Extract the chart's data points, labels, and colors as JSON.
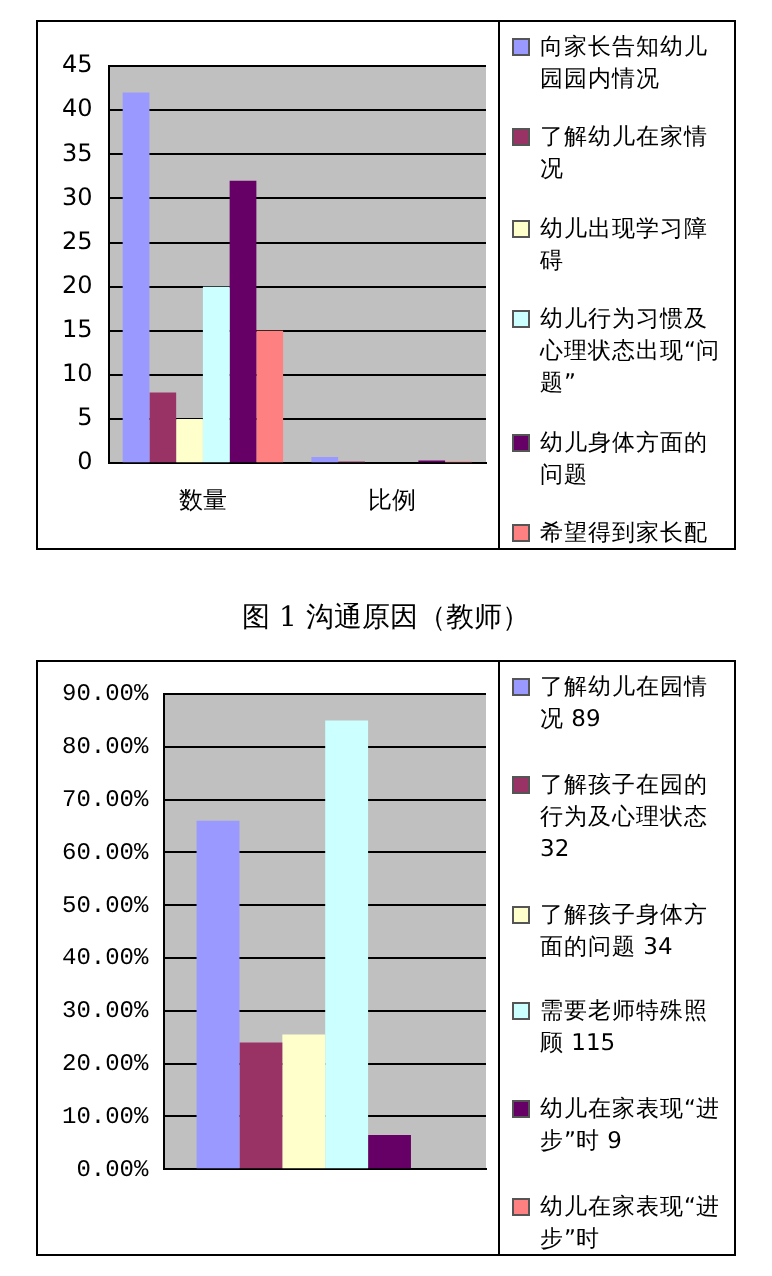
{
  "chart_data": [
    {
      "type": "bar",
      "categories": [
        "数量",
        "比例"
      ],
      "ylim": [
        0,
        45
      ],
      "yticks": [
        0,
        5,
        10,
        15,
        20,
        25,
        30,
        35,
        40,
        45
      ],
      "grid": "y",
      "legend": "right",
      "annotations": [
        "图 1 沟通原因（教师）"
      ],
      "series": [
        {
          "name": "向家长告知幼儿园园内情况",
          "color": "#9999ff",
          "values": [
            42,
            0.7
          ]
        },
        {
          "name": "了解幼儿在家情况",
          "color": "#993366",
          "values": [
            8,
            0.2
          ]
        },
        {
          "name": "幼儿出现学习障碍",
          "color": "#ffffcc",
          "values": [
            5,
            null
          ]
        },
        {
          "name": "幼儿行为习惯及心理状态出现“问题”",
          "color": "#ccffff",
          "values": [
            20,
            null
          ]
        },
        {
          "name": "幼儿身体方面的问题",
          "color": "#660066",
          "values": [
            32,
            0.3
          ]
        },
        {
          "name": "希望得到家长配",
          "color": "#ff8080",
          "values": [
            15,
            0.2
          ]
        }
      ]
    },
    {
      "type": "bar",
      "categories": [
        null
      ],
      "ylim": [
        0,
        90
      ],
      "yticks": [
        {
          "value": 0,
          "label": "0.00%"
        },
        {
          "value": 10,
          "label": "10.00%"
        },
        {
          "value": 20,
          "label": "20.00%"
        },
        {
          "value": 30,
          "label": "30.00%"
        },
        {
          "value": 40,
          "label": "40.00%"
        },
        {
          "value": 50,
          "label": "50.00%"
        },
        {
          "value": 60,
          "label": "60.00%"
        },
        {
          "value": 70,
          "label": "70.00%"
        },
        {
          "value": 80,
          "label": "80.00%"
        },
        {
          "value": 90,
          "label": "90.00%"
        }
      ],
      "grid": "y",
      "legend": "right",
      "series": [
        {
          "name": "了解幼儿在园情况 89",
          "color": "#9999ff",
          "values": [
            66
          ]
        },
        {
          "name": "了解孩子在园的行为及心理状态 32",
          "color": "#993366",
          "values": [
            24
          ]
        },
        {
          "name": "了解孩子身体方面的问题 34",
          "color": "#ffffcc",
          "values": [
            25.5
          ]
        },
        {
          "name": "需要老师特殊照顾 115",
          "color": "#ccffff",
          "values": [
            85
          ]
        },
        {
          "name": "幼儿在家表现“进步”时 9",
          "color": "#660066",
          "values": [
            6.5
          ]
        },
        {
          "name": "幼儿在家表现“进步”时",
          "color": "#ff8080",
          "values": [
            null
          ]
        }
      ]
    }
  ]
}
